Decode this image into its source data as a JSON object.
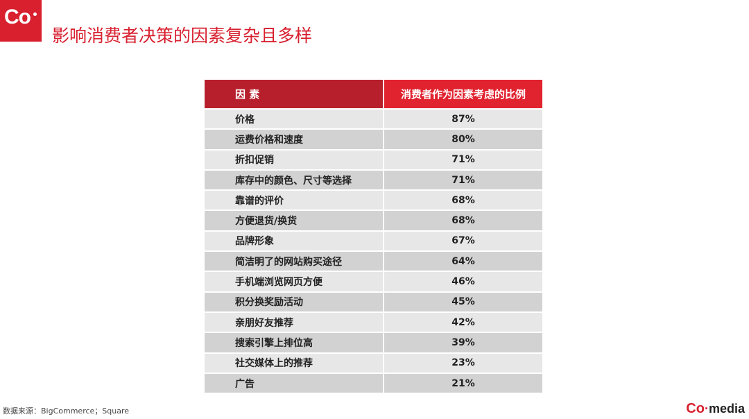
{
  "header": {
    "logo": "Co",
    "title": "影响消费者决策的因素复杂且多样"
  },
  "table": {
    "columns": [
      "因 素",
      "消费者作为因素考虑的比例"
    ],
    "rows": [
      [
        "价格",
        "87%"
      ],
      [
        "运费价格和速度",
        "80%"
      ],
      [
        "折扣促销",
        "71%"
      ],
      [
        "库存中的颜色、尺寸等选择",
        "71%"
      ],
      [
        "靠谱的评价",
        "68%"
      ],
      [
        "方便退货/换货",
        "68%"
      ],
      [
        "品牌形象",
        "67%"
      ],
      [
        "简洁明了的网站购买途径",
        "64%"
      ],
      [
        "手机端浏览网页方便",
        "46%"
      ],
      [
        "积分换奖励活动",
        "45%"
      ],
      [
        "亲朋好友推荐",
        "42%"
      ],
      [
        "搜索引擎上排位高",
        "39%"
      ],
      [
        "社交媒体上的推荐",
        "23%"
      ],
      [
        "广告",
        "21%"
      ]
    ]
  },
  "footer": {
    "source": "数据来源：BigCommerce；Square",
    "brand_mark": "Co",
    "brand_text": "media"
  }
}
